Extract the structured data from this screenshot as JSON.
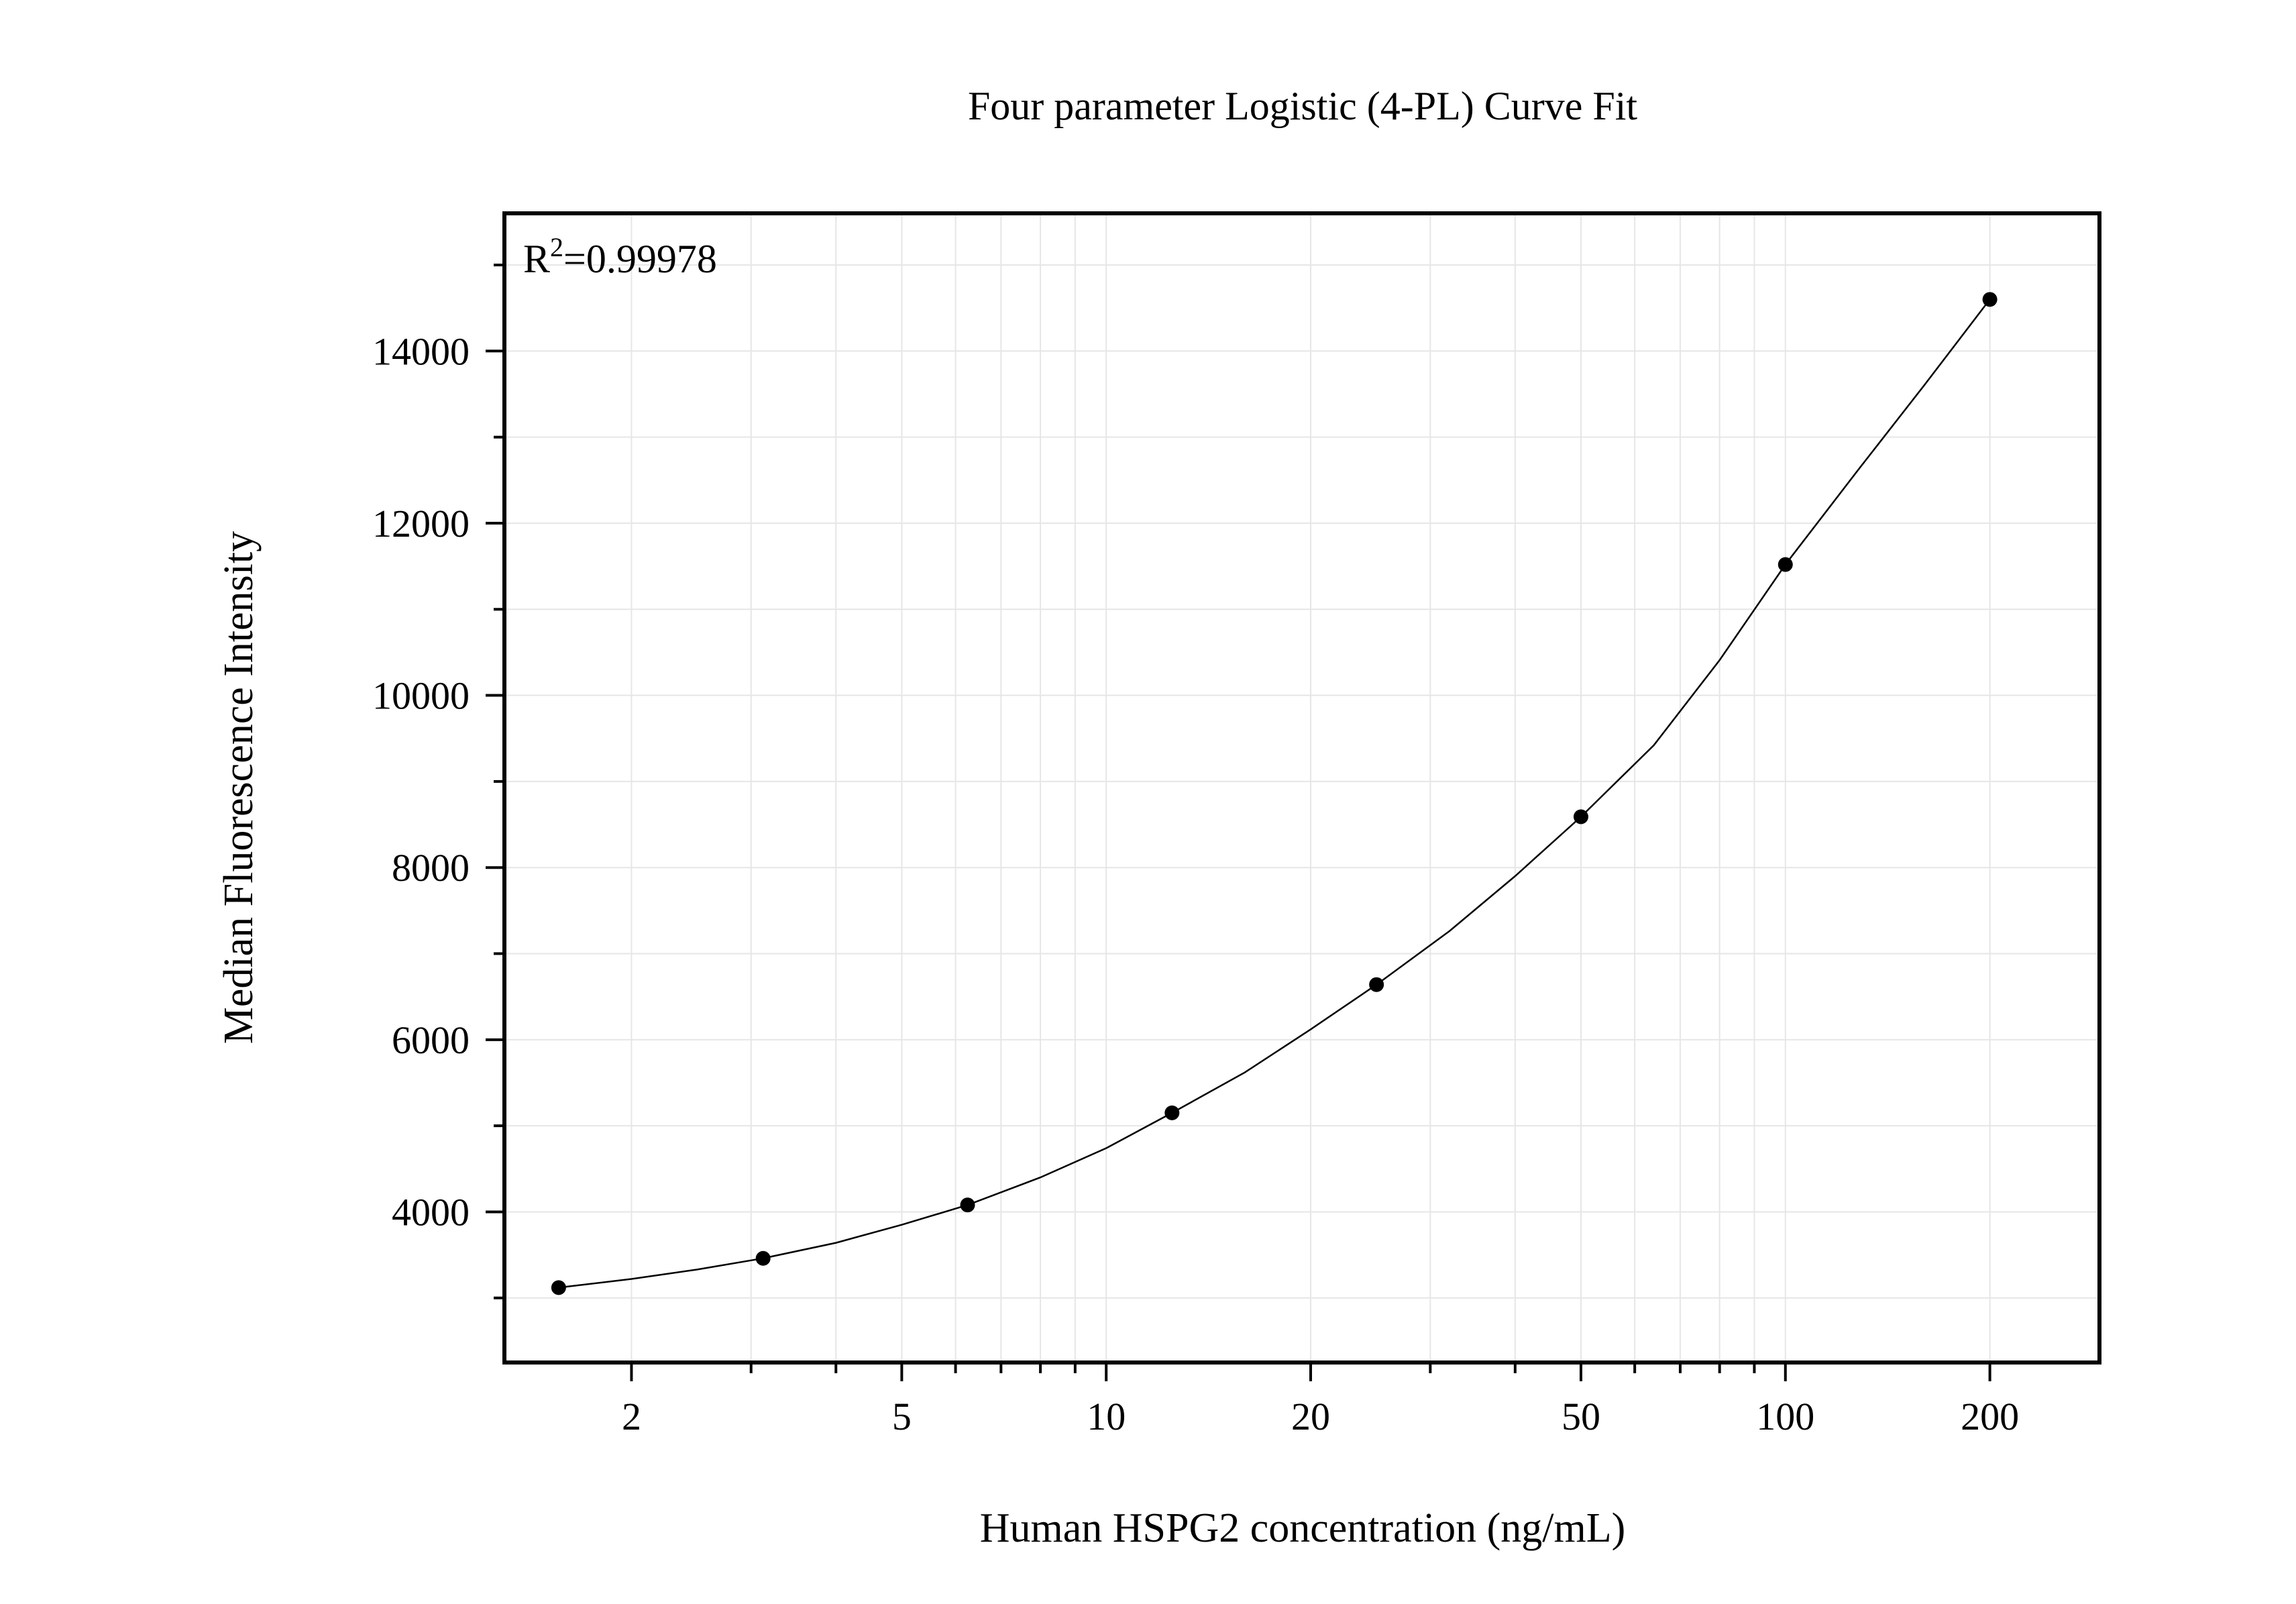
{
  "chart_data": {
    "type": "scatter",
    "title": "Four parameter Logistic (4-PL) Curve Fit",
    "xlabel": "Human HSPG2 concentration (ng/mL)",
    "ylabel": "Median Fluorescence Intensity",
    "x_scale": "log",
    "xlim": [
      1.3,
      290
    ],
    "ylim": [
      2250,
      15600
    ],
    "x_ticks": [
      2,
      5,
      10,
      20,
      50,
      100,
      200
    ],
    "x_tick_labels": [
      "2",
      "5",
      "10",
      "20",
      "50",
      "100",
      "200"
    ],
    "y_ticks": [
      4000,
      6000,
      8000,
      10000,
      12000,
      14000
    ],
    "y_tick_labels": [
      "4000",
      "6000",
      "8000",
      "10000",
      "12000",
      "14000"
    ],
    "grid": true,
    "annotation": {
      "base": "R",
      "superscript": "2",
      "rest": "=0.99978"
    },
    "series": [
      {
        "type": "scatter",
        "x": [
          1.5625,
          3.125,
          6.25,
          12.5,
          25,
          50,
          100,
          200
        ],
        "y": [
          3120,
          3460,
          4080,
          5150,
          6640,
          8590,
          11520,
          14600
        ]
      },
      {
        "type": "line",
        "fit": "4-PL",
        "x": [
          1.5625,
          2,
          2.5,
          3.125,
          4,
          5,
          6.25,
          8,
          10,
          12.5,
          16,
          20,
          25,
          32,
          40,
          50,
          64,
          80,
          100,
          128,
          160,
          200
        ],
        "y": [
          3120,
          3220,
          3330,
          3460,
          3640,
          3850,
          4080,
          4400,
          4740,
          5150,
          5620,
          6120,
          6640,
          7260,
          7900,
          8590,
          9420,
          10410,
          11520,
          12620,
          13600,
          14600
        ]
      }
    ],
    "colors": {
      "axis": "#000000",
      "grid": "#e6e6e6",
      "points": "#000000",
      "curve": "#000000"
    }
  }
}
